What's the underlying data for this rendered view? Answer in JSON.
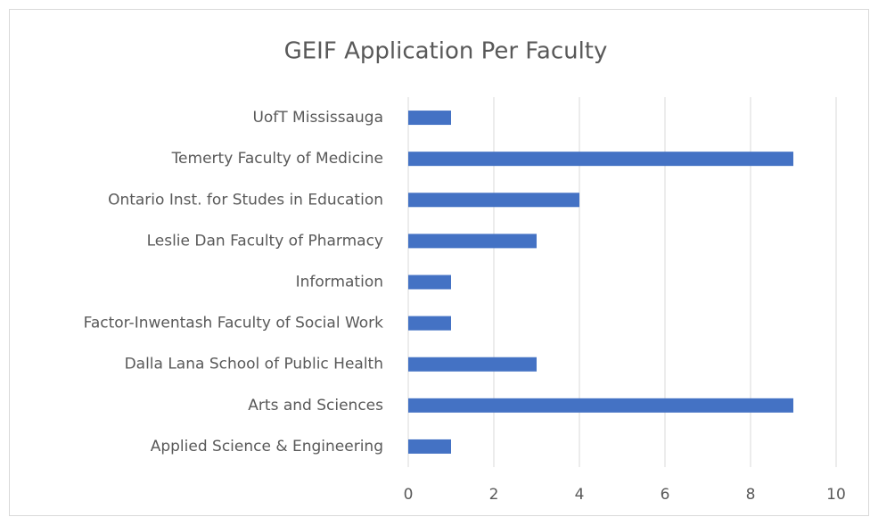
{
  "chart_data": {
    "type": "barh",
    "title": "GEIF Application Per Faculty",
    "categories": [
      "UofT Mississauga",
      "Temerty Faculty of Medicine",
      "Ontario Inst. for Studes in Education",
      "Leslie Dan Faculty of Pharmacy",
      "Information",
      "Factor-Inwentash Faculty of Social Work",
      "Dalla Lana School of Public Health",
      "Arts and Sciences",
      "Applied Science & Engineering"
    ],
    "values": [
      1,
      9,
      4,
      3,
      1,
      1,
      3,
      9,
      1
    ],
    "color": "#4472c4",
    "xlim": [
      0,
      10
    ],
    "xticks": [
      0,
      2,
      4,
      6,
      8,
      10
    ],
    "grid": true
  }
}
